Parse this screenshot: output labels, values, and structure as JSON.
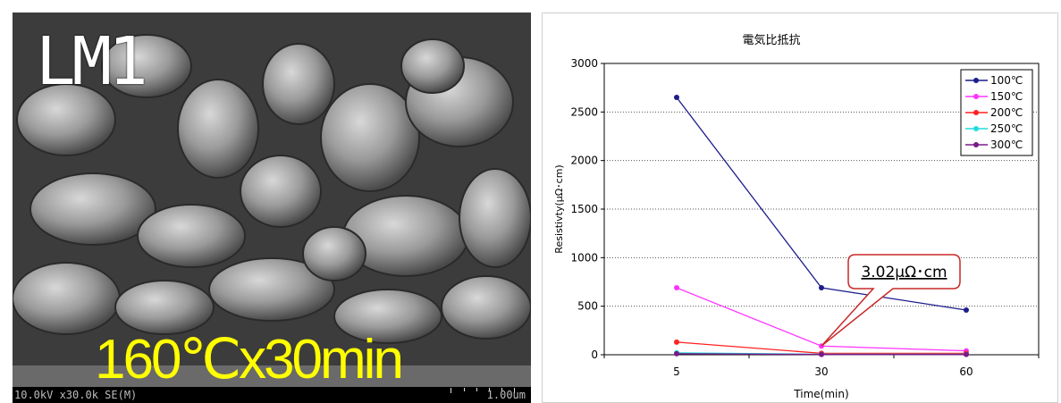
{
  "sem": {
    "label": "LM1",
    "condition": "160℃x30min",
    "params": "10.0kV x30.0k SE(M)",
    "scale": "1.00um"
  },
  "chart_data": {
    "type": "line",
    "title": "電気比抵抗",
    "xlabel": "Time(min)",
    "ylabel": "Resistivty(μΩ･cm)",
    "categories": [
      "5",
      "30",
      "60"
    ],
    "ylim": [
      0,
      3000
    ],
    "yticks": [
      0,
      500,
      1000,
      1500,
      2000,
      2500,
      3000
    ],
    "grid": "horizontal-dotted",
    "legend": "top-right",
    "series": [
      {
        "name": "100℃",
        "color": "#1c1c8c",
        "values": [
          2650,
          690,
          460
        ]
      },
      {
        "name": "150℃",
        "color": "#ff33ff",
        "values": [
          690,
          90,
          40
        ]
      },
      {
        "name": "200℃",
        "color": "#ff2222",
        "values": [
          130,
          15,
          15
        ]
      },
      {
        "name": "250℃",
        "color": "#22dddd",
        "values": [
          20,
          5,
          5
        ]
      },
      {
        "name": "300℃",
        "color": "#7a1a8a",
        "values": [
          10,
          3.02,
          3
        ]
      }
    ],
    "annotation": {
      "text": "3.02μΩ･cm",
      "category": "30",
      "value": 90
    }
  }
}
